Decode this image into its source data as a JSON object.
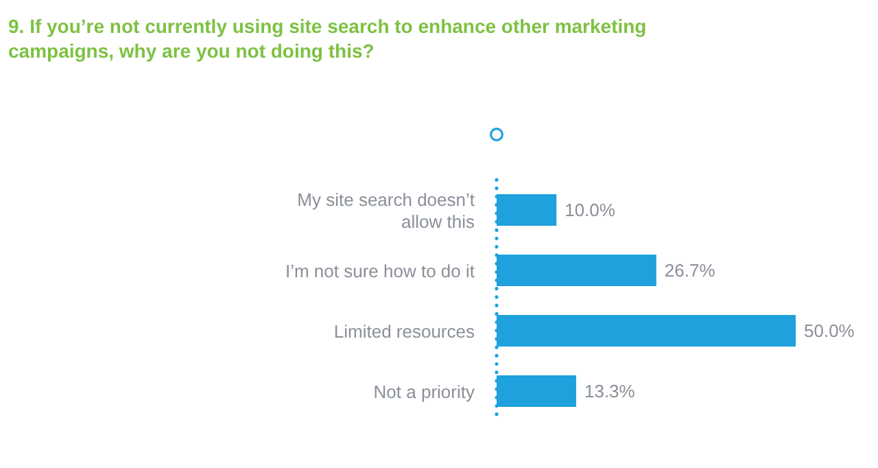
{
  "chart_data": {
    "type": "bar",
    "orientation": "horizontal",
    "title": "9. If you’re not currently using site search to enhance other marketing campaigns, why are you not doing this?",
    "categories": [
      "My site search doesn’t allow this",
      "I’m not sure how to do it",
      "Limited resources",
      "Not a priority"
    ],
    "values": [
      10.0,
      26.7,
      50.0,
      13.3
    ],
    "value_labels": [
      "10.0%",
      "26.7%",
      "50.0%",
      "13.3%"
    ],
    "color": "#1ea1dc",
    "tick_labels": "y"
  }
}
